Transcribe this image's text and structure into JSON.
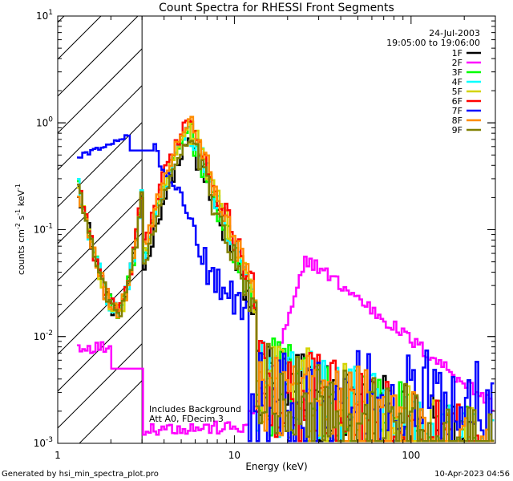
{
  "chart_data": {
    "type": "line",
    "title": "Count Spectra for RHESSI Front Segments",
    "xlabel": "Energy (keV)",
    "ylabel_parts": {
      "base": "counts cm",
      "sup1": "-2",
      "mid1": " s",
      "sup2": "-1",
      "mid2": " keV",
      "sup3": "-1"
    },
    "xscale": "log",
    "yscale": "log",
    "xlim": [
      1,
      300
    ],
    "ylim": [
      0.001,
      10
    ],
    "x_ticks": [
      {
        "value": 1,
        "label": "1"
      },
      {
        "value": 10,
        "label": "10"
      },
      {
        "value": 100,
        "label": "100"
      }
    ],
    "y_ticks": [
      {
        "value": 0.001,
        "base": "10",
        "exp": "-3"
      },
      {
        "value": 0.01,
        "base": "10",
        "exp": "-2"
      },
      {
        "value": 0.1,
        "base": "10",
        "exp": "-1"
      },
      {
        "value": 1,
        "base": "10",
        "exp": "0"
      },
      {
        "value": 10,
        "base": "10",
        "exp": "1"
      }
    ],
    "hatched_region": [
      1,
      3
    ],
    "date": "24-Jul-2003",
    "time_range": "19:05:00 to 19:06:00",
    "annotations": [
      "Includes Background",
      "Att A0, FDecim 3"
    ],
    "series": [
      {
        "name": "1F",
        "color": "#000000",
        "kind": "front"
      },
      {
        "name": "2F",
        "color": "#ff00ff",
        "kind": "seg2"
      },
      {
        "name": "3F",
        "color": "#00ff00",
        "kind": "front"
      },
      {
        "name": "4F",
        "color": "#00ffff",
        "kind": "front"
      },
      {
        "name": "5F",
        "color": "#d4d400",
        "kind": "front"
      },
      {
        "name": "6F",
        "color": "#ff0000",
        "kind": "front"
      },
      {
        "name": "7F",
        "color": "#0000ff",
        "kind": "seg7"
      },
      {
        "name": "8F",
        "color": "#ff8c00",
        "kind": "front"
      },
      {
        "name": "9F",
        "color": "#808000",
        "kind": "front"
      }
    ]
  },
  "footer": {
    "generated_by": "Generated by hsi_min_spectra_plot.pro",
    "timestamp": "10-Apr-2023 04:56"
  }
}
